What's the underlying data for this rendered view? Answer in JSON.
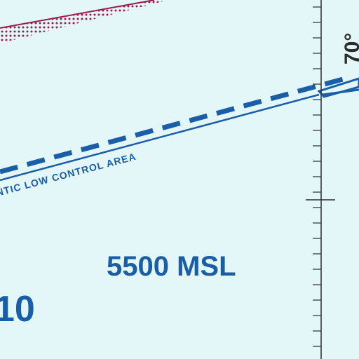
{
  "map": {
    "background_color": "#e4f7f8",
    "boundary_color": "#1a5ea8",
    "restricted_color": "#9b1b4e",
    "tick_color": "#2b2b2b",
    "labels": {
      "control_area": "NTIC LOW CONTROL AREA",
      "altitude": "5500 MSL",
      "longitude": "70°",
      "partial_number": "10"
    },
    "features": {
      "restricted_area_border": "dotted-hatch-band",
      "control_area_boundary": "dashed-double-line",
      "meridian": "tick-marked-longitude-line"
    }
  }
}
